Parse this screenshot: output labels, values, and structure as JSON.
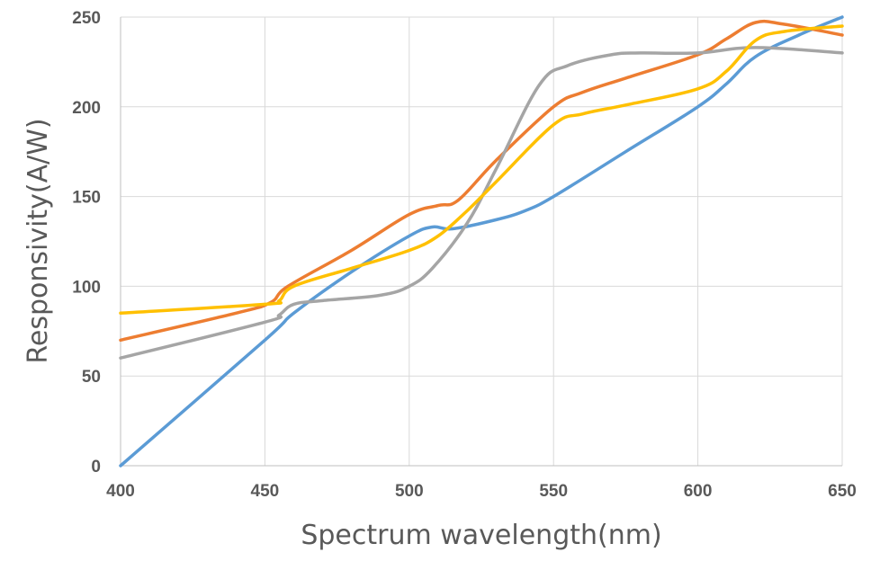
{
  "chart_data": {
    "type": "line",
    "title": "",
    "xlabel": "Spectrum wavelength(nm)",
    "ylabel": "Responsivity(A/W)",
    "xlim": [
      400,
      650
    ],
    "ylim": [
      0,
      250
    ],
    "x_ticks": [
      "400",
      "450",
      "500",
      "550",
      "600",
      "650"
    ],
    "y_ticks": [
      "0",
      "50",
      "100",
      "150",
      "200",
      "250"
    ],
    "grid": true,
    "legend": "none",
    "series": [
      {
        "color": "#5b9bd5",
        "points": [
          [
            400,
            0
          ],
          [
            450,
            70
          ],
          [
            460,
            85
          ],
          [
            480,
            108
          ],
          [
            500,
            128
          ],
          [
            508,
            133
          ],
          [
            515,
            132
          ],
          [
            530,
            137
          ],
          [
            540,
            142
          ],
          [
            550,
            150
          ],
          [
            575,
            175
          ],
          [
            600,
            200
          ],
          [
            610,
            213
          ],
          [
            620,
            228
          ],
          [
            635,
            240
          ],
          [
            650,
            250
          ]
        ]
      },
      {
        "color": "#ed7d31",
        "points": [
          [
            400,
            70
          ],
          [
            440,
            85
          ],
          [
            452,
            91
          ],
          [
            458,
            100
          ],
          [
            480,
            120
          ],
          [
            500,
            140
          ],
          [
            510,
            145
          ],
          [
            517,
            148
          ],
          [
            530,
            170
          ],
          [
            550,
            200
          ],
          [
            560,
            208
          ],
          [
            575,
            216
          ],
          [
            600,
            229
          ],
          [
            610,
            238
          ],
          [
            620,
            247
          ],
          [
            630,
            246
          ],
          [
            650,
            240
          ]
        ]
      },
      {
        "color": "#a5a5a5",
        "points": [
          [
            400,
            60
          ],
          [
            450,
            80
          ],
          [
            455,
            84
          ],
          [
            460,
            90
          ],
          [
            470,
            92
          ],
          [
            490,
            95
          ],
          [
            500,
            100
          ],
          [
            508,
            110
          ],
          [
            520,
            135
          ],
          [
            530,
            165
          ],
          [
            545,
            212
          ],
          [
            555,
            223
          ],
          [
            570,
            229
          ],
          [
            580,
            230
          ],
          [
            600,
            230
          ],
          [
            620,
            233
          ],
          [
            650,
            230
          ]
        ]
      },
      {
        "color": "#ffc000",
        "points": [
          [
            400,
            85
          ],
          [
            450,
            90
          ],
          [
            455,
            92
          ],
          [
            460,
            100
          ],
          [
            480,
            110
          ],
          [
            500,
            120
          ],
          [
            510,
            128
          ],
          [
            520,
            142
          ],
          [
            530,
            158
          ],
          [
            550,
            190
          ],
          [
            560,
            196
          ],
          [
            575,
            201
          ],
          [
            600,
            210
          ],
          [
            610,
            220
          ],
          [
            620,
            237
          ],
          [
            630,
            242
          ],
          [
            650,
            245
          ]
        ]
      }
    ]
  }
}
